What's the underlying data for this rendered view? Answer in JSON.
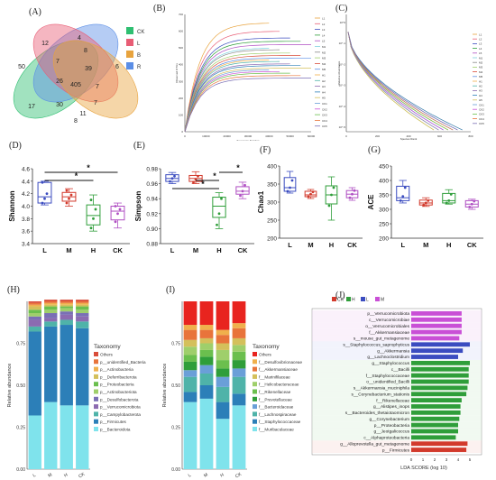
{
  "panels": {
    "A": "(A)",
    "B": "(B)",
    "C": "(C)",
    "D": "(D)",
    "E": "(E)",
    "F": "(F)",
    "G": "(G)",
    "H": "(H)",
    "I": "(I)",
    "J": "(J)"
  },
  "chart_data": [
    {
      "id": "A",
      "type": "venn",
      "sets": [
        {
          "name": "CK",
          "color": "#2fbf71"
        },
        {
          "name": "L",
          "color": "#e85d75"
        },
        {
          "name": "B",
          "color": "#e8a33d"
        },
        {
          "name": "R",
          "color": "#5b8ee6"
        }
      ],
      "region_values": [
        "50",
        "12",
        "4",
        "6",
        "7",
        "8",
        "26",
        "39",
        "17",
        "405",
        "7",
        "30",
        "11",
        "8",
        "7"
      ]
    },
    {
      "id": "B",
      "type": "line",
      "title": "",
      "xlabel": "Sequence Number",
      "ylabel": "Observed OTUs",
      "xlim": [
        0,
        60000
      ],
      "ylim": [
        0,
        700
      ],
      "xticks": [
        "0",
        "10000",
        "20000",
        "30000",
        "40000",
        "50000",
        "60000"
      ],
      "yticks": [
        "0",
        "100",
        "200",
        "300",
        "400",
        "500",
        "600",
        "700"
      ],
      "legend": [
        "L1",
        "L2",
        "L3",
        "L4",
        "L5",
        "M1",
        "M2",
        "M3",
        "M4",
        "M5",
        "H1",
        "H2",
        "H3",
        "H4",
        "H5",
        "CK1",
        "CK2",
        "CK3",
        "CK4",
        "CK5"
      ],
      "series_asymptotes": [
        650,
        600,
        560,
        540,
        520,
        500,
        490,
        470,
        455,
        440,
        430,
        420,
        405,
        395,
        380,
        370,
        360,
        350,
        335,
        320
      ]
    },
    {
      "id": "C",
      "type": "line",
      "xlabel": "Species Rank",
      "ylabel": "Relative Abundance",
      "xticks": [
        "0",
        "200",
        "400",
        "600",
        "800"
      ],
      "yticks": [
        "10^0",
        "10^-1",
        "10^-2",
        "10^-3",
        "10^-4",
        "10^-5"
      ],
      "legend": [
        "L1",
        "L2",
        "L3",
        "L4",
        "L5",
        "M1",
        "M2",
        "M3",
        "M4",
        "M5",
        "H1",
        "H2",
        "H3",
        "H4",
        "H5",
        "CK1",
        "CK2",
        "CK3",
        "CK4",
        "CK5"
      ]
    },
    {
      "id": "D",
      "type": "box",
      "ylabel": "Shannon",
      "categories": [
        "L",
        "M",
        "H",
        "CK"
      ],
      "colors": [
        "#3b4cc0",
        "#d23a2c",
        "#2f9e3a",
        "#b04fc3"
      ],
      "ylim": [
        3.4,
        4.6
      ],
      "yticks": [
        "3.4",
        "3.6",
        "3.8",
        "4.0",
        "4.2",
        "4.4",
        "4.6"
      ],
      "boxes": [
        {
          "min": 4.02,
          "q1": 4.05,
          "med": 4.15,
          "q3": 4.38,
          "max": 4.4,
          "pts": [
            4.05,
            4.12,
            4.2,
            4.38
          ]
        },
        {
          "min": 4.0,
          "q1": 4.08,
          "med": 4.15,
          "q3": 4.22,
          "max": 4.28,
          "pts": [
            4.05,
            4.12,
            4.18,
            4.25
          ]
        },
        {
          "min": 3.6,
          "q1": 3.7,
          "med": 3.85,
          "q3": 4.02,
          "max": 4.18,
          "pts": [
            3.65,
            3.8,
            3.95,
            4.1
          ]
        },
        {
          "min": 3.65,
          "q1": 3.78,
          "med": 3.92,
          "q3": 4.0,
          "max": 4.05,
          "pts": [
            3.75,
            3.88,
            3.95,
            4.0
          ]
        }
      ],
      "significance": [
        {
          "from": 0,
          "to": 3,
          "label": "*"
        },
        {
          "from": 0,
          "to": 2,
          "label": "*"
        }
      ]
    },
    {
      "id": "E",
      "type": "box",
      "ylabel": "Simpson",
      "categories": [
        "L",
        "M",
        "H",
        "CK"
      ],
      "colors": [
        "#3b4cc0",
        "#d23a2c",
        "#2f9e3a",
        "#b04fc3"
      ],
      "ylim": [
        0.88,
        0.98
      ],
      "yticks": [
        "0.88",
        "0.90",
        "0.92",
        "0.94",
        "0.96",
        "0.98"
      ],
      "boxes": [
        {
          "min": 0.96,
          "q1": 0.963,
          "med": 0.967,
          "q3": 0.972,
          "max": 0.975,
          "pts": [
            0.963,
            0.967,
            0.97
          ]
        },
        {
          "min": 0.96,
          "q1": 0.963,
          "med": 0.967,
          "q3": 0.971,
          "max": 0.976,
          "pts": [
            0.962,
            0.966,
            0.97
          ]
        },
        {
          "min": 0.9,
          "q1": 0.915,
          "med": 0.93,
          "q3": 0.942,
          "max": 0.948,
          "pts": [
            0.905,
            0.92,
            0.94
          ]
        },
        {
          "min": 0.94,
          "q1": 0.946,
          "med": 0.95,
          "q3": 0.956,
          "max": 0.962,
          "pts": [
            0.944,
            0.95,
            0.958
          ]
        }
      ],
      "significance": [
        {
          "from": 2,
          "to": 3,
          "label": "*"
        },
        {
          "from": 1,
          "to": 2,
          "label": "*"
        },
        {
          "from": 0,
          "to": 2,
          "label": "*"
        }
      ]
    },
    {
      "id": "F",
      "type": "box",
      "ylabel": "Chao1",
      "categories": [
        "L",
        "M",
        "H",
        "CK"
      ],
      "colors": [
        "#3b4cc0",
        "#d23a2c",
        "#2f9e3a",
        "#b04fc3"
      ],
      "ylim": [
        200,
        400
      ],
      "yticks": [
        "200",
        "250",
        "300",
        "350",
        "400"
      ],
      "boxes": [
        {
          "min": 325,
          "q1": 330,
          "med": 340,
          "q3": 368,
          "max": 385,
          "pts": [
            330,
            340,
            360
          ]
        },
        {
          "min": 310,
          "q1": 315,
          "med": 320,
          "q3": 330,
          "max": 335,
          "pts": [
            315,
            322,
            328
          ]
        },
        {
          "min": 250,
          "q1": 295,
          "med": 320,
          "q3": 345,
          "max": 370,
          "pts": [
            290,
            320,
            340
          ]
        },
        {
          "min": 305,
          "q1": 312,
          "med": 322,
          "q3": 332,
          "max": 340,
          "pts": [
            312,
            322,
            332
          ]
        }
      ]
    },
    {
      "id": "G",
      "type": "box",
      "ylabel": "ACE",
      "categories": [
        "L",
        "M",
        "H",
        "CK"
      ],
      "colors": [
        "#3b4cc0",
        "#d23a2c",
        "#2f9e3a",
        "#b04fc3"
      ],
      "ylim": [
        200,
        450
      ],
      "yticks": [
        "200",
        "250",
        "300",
        "350",
        "400",
        "450"
      ],
      "boxes": [
        {
          "min": 322,
          "q1": 330,
          "med": 340,
          "q3": 380,
          "max": 400,
          "pts": [
            330,
            345,
            375
          ]
        },
        {
          "min": 310,
          "q1": 315,
          "med": 322,
          "q3": 332,
          "max": 340,
          "pts": [
            315,
            322,
            330
          ]
        },
        {
          "min": 318,
          "q1": 322,
          "med": 330,
          "q3": 355,
          "max": 368,
          "pts": [
            322,
            330,
            352
          ]
        },
        {
          "min": 300,
          "q1": 308,
          "med": 318,
          "q3": 330,
          "max": 335,
          "pts": [
            308,
            318,
            328
          ]
        }
      ]
    },
    {
      "id": "H",
      "type": "stacked_bar",
      "ylabel": "Relative abundance",
      "legend_title": "Taxonomy",
      "categories": [
        "L",
        "M",
        "H",
        "CK"
      ],
      "yticks": [
        "0.00",
        "0.25",
        "0.50",
        "0.75"
      ],
      "series": [
        {
          "name": "p__Bacteroidota",
          "color": "#7fe3ec",
          "values": [
            0.32,
            0.4,
            0.38,
            0.38
          ]
        },
        {
          "name": "p__Firmicutes",
          "color": "#2c7fb8",
          "values": [
            0.5,
            0.45,
            0.48,
            0.46
          ]
        },
        {
          "name": "p__Campylobacterota",
          "color": "#4fb3a9",
          "values": [
            0.03,
            0.03,
            0.03,
            0.04
          ]
        },
        {
          "name": "p__Verrucomicrobiota",
          "color": "#8c6bb1",
          "values": [
            0.04,
            0.02,
            0.03,
            0.03
          ]
        },
        {
          "name": "p__Desulfobacterota",
          "color": "#7a6fb5",
          "values": [
            0.02,
            0.03,
            0.02,
            0.02
          ]
        },
        {
          "name": "p__Actinobacteriota",
          "color": "#9fcf6b",
          "values": [
            0.02,
            0.02,
            0.02,
            0.02
          ]
        },
        {
          "name": "p__Proteobacteria",
          "color": "#6bbf4e",
          "values": [
            0.02,
            0.02,
            0.01,
            0.02
          ]
        },
        {
          "name": "p__Deferribacterota",
          "color": "#d4c05b",
          "values": [
            0.02,
            0.01,
            0.01,
            0.01
          ]
        },
        {
          "name": "p__Actinobacteria",
          "color": "#f0b04c",
          "values": [
            0.01,
            0.01,
            0.01,
            0.01
          ]
        },
        {
          "name": "p__unidentified_Bacteria",
          "color": "#e8743b",
          "values": [
            0.01,
            0.01,
            0.01,
            0.01
          ]
        },
        {
          "name": "Others",
          "color": "#d94d3a",
          "values": [
            0.01,
            0.01,
            0.01,
            0.01
          ]
        }
      ]
    },
    {
      "id": "I",
      "type": "stacked_bar",
      "ylabel": "Relative abundance",
      "legend_title": "Taxonomy",
      "categories": [
        "L",
        "M",
        "H",
        "CK"
      ],
      "yticks": [
        "0.00",
        "0.25",
        "0.50",
        "0.75"
      ],
      "series": [
        {
          "name": "f__Muribaculaceae",
          "color": "#7fe3ec",
          "values": [
            0.4,
            0.42,
            0.3,
            0.38
          ]
        },
        {
          "name": "f__Staphylococcaceae",
          "color": "#2c7fb8",
          "values": [
            0.06,
            0.08,
            0.1,
            0.07
          ]
        },
        {
          "name": "f__Lachnospiraceae",
          "color": "#4fb3a9",
          "values": [
            0.09,
            0.07,
            0.09,
            0.1
          ]
        },
        {
          "name": "f__Bacteroidaceae",
          "color": "#6a9fd8",
          "values": [
            0.04,
            0.05,
            0.06,
            0.05
          ]
        },
        {
          "name": "f__Prevotellaceae",
          "color": "#2f9e3a",
          "values": [
            0.05,
            0.05,
            0.05,
            0.05
          ]
        },
        {
          "name": "f__Rikenellaceae",
          "color": "#6bbf4e",
          "values": [
            0.04,
            0.04,
            0.05,
            0.05
          ]
        },
        {
          "name": "f__Helicobacteraceae",
          "color": "#9fcf6b",
          "values": [
            0.05,
            0.04,
            0.06,
            0.04
          ]
        },
        {
          "name": "f__Marinifilaceae",
          "color": "#d4c05b",
          "values": [
            0.04,
            0.03,
            0.04,
            0.04
          ]
        },
        {
          "name": "f__Akkermansiaceae",
          "color": "#e8743b",
          "values": [
            0.06,
            0.05,
            0.05,
            0.06
          ]
        },
        {
          "name": "f__Desulfovibrionaceae",
          "color": "#f0b04c",
          "values": [
            0.03,
            0.03,
            0.03,
            0.03
          ]
        },
        {
          "name": "Others",
          "color": "#e8241f",
          "values": [
            0.14,
            0.14,
            0.17,
            0.13
          ]
        }
      ]
    },
    {
      "id": "J",
      "type": "bar_horizontal",
      "xlabel": "LDA SCORE (log 10)",
      "xticks": [
        "0",
        "1",
        "2",
        "3",
        "4",
        "5"
      ],
      "legend": [
        {
          "name": "CK",
          "color": "#d23a2c"
        },
        {
          "name": "H",
          "color": "#2f9e3a"
        },
        {
          "name": "L",
          "color": "#3b4cc0"
        },
        {
          "name": "M",
          "color": "#c94fd6"
        }
      ],
      "bars": [
        {
          "label": "p__Verrucomicrobiota",
          "group": "M",
          "value": 4.3
        },
        {
          "label": "c__Verrucomicrobiae",
          "group": "M",
          "value": 4.3
        },
        {
          "label": "o__Verrucomicrobiales",
          "group": "M",
          "value": 4.3
        },
        {
          "label": "f__Akkermansiaceae",
          "group": "M",
          "value": 4.3
        },
        {
          "label": "s__mouse_gut_metagenome",
          "group": "M",
          "value": 4.1
        },
        {
          "label": "s__Staphylococcus_saprophyticus",
          "group": "L",
          "value": 5.0
        },
        {
          "label": "g__Akkermansia",
          "group": "L",
          "value": 4.4
        },
        {
          "label": "g__Lachnoclostridium",
          "group": "L",
          "value": 4.0
        },
        {
          "label": "g__Staphylococcus",
          "group": "H",
          "value": 5.0
        },
        {
          "label": "c__Bacilli",
          "group": "H",
          "value": 4.9
        },
        {
          "label": "f__Staphylococcaceae",
          "group": "H",
          "value": 4.9
        },
        {
          "label": "o__unidentified_Bacilli",
          "group": "H",
          "value": 4.9
        },
        {
          "label": "s__Akkermansia_muciniphila",
          "group": "H",
          "value": 4.8
        },
        {
          "label": "s__Corynebacterium_stationis",
          "group": "H",
          "value": 4.7
        },
        {
          "label": "f__Rikenellaceae",
          "group": "H",
          "value": 4.3
        },
        {
          "label": "g__Alistipes_inops",
          "group": "H",
          "value": 4.2
        },
        {
          "label": "s__Bacteroides_thetaiotaomicron",
          "group": "H",
          "value": 4.2
        },
        {
          "label": "g__Corynebacterium",
          "group": "H",
          "value": 4.1
        },
        {
          "label": "p__Proteobacteria",
          "group": "H",
          "value": 4.0
        },
        {
          "label": "g__Jeotgalicoccus",
          "group": "H",
          "value": 4.0
        },
        {
          "label": "c__Alphaproteobacteria",
          "group": "H",
          "value": 3.8
        },
        {
          "label": "g__Alloprevotella_gut_metagenome",
          "group": "CK",
          "value": 4.8
        },
        {
          "label": "p__Firmicutes",
          "group": "CK",
          "value": 4.7
        }
      ]
    }
  ]
}
